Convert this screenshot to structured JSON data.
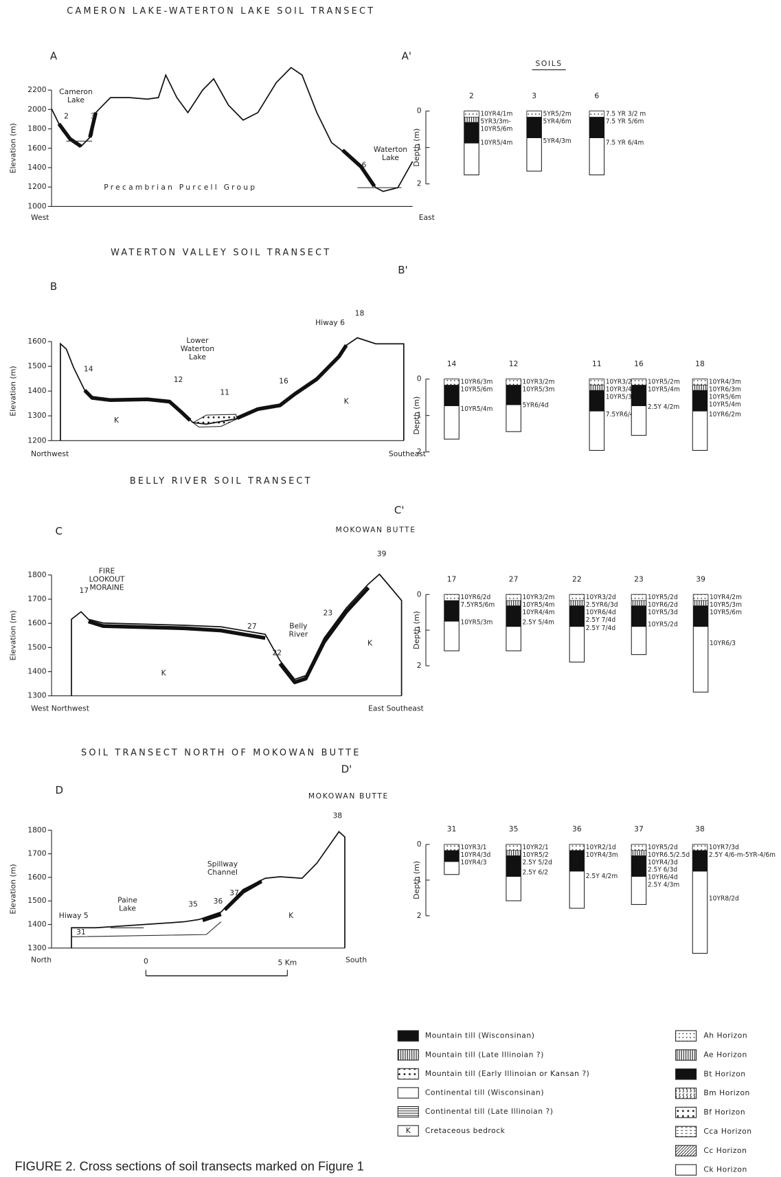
{
  "panels": [
    {
      "title": "CAMERON LAKE-WATERTON LAKE SOIL TRANSECT",
      "start": "A",
      "end": "A'",
      "y_axis_label": "Elevation (m)",
      "y_ticks": [
        "2200",
        "2000",
        "1800",
        "1600",
        "1400",
        "1200",
        "1000"
      ],
      "left_label": "West",
      "right_label": "East",
      "annotations": [
        "Cameron Lake",
        "2",
        "3",
        "Waterton Lake",
        "6",
        "Precambrian Purcell Group"
      ],
      "soils_heading": "SOILS",
      "depth_axis_label": "Depth (m)",
      "depth_ticks": [
        "0",
        "1",
        "2"
      ],
      "profiles": [
        {
          "id": "2",
          "horizons": [
            "10YR4/1m",
            "5YR3/3m-",
            "10YR5/6m",
            "10YR5/4m"
          ]
        },
        {
          "id": "3",
          "horizons": [
            "5YR5/2m",
            "5YR4/6m",
            "5YR4/3m"
          ]
        },
        {
          "id": "6",
          "horizons": [
            "7.5 YR 3/2 m",
            "7.5 YR 5/6m",
            "7.5 YR 6/4m"
          ]
        }
      ]
    },
    {
      "title": "WATERTON VALLEY SOIL TRANSECT",
      "start": "B",
      "end": "B'",
      "y_axis_label": "Elevation (m)",
      "y_ticks": [
        "1600",
        "1500",
        "1400",
        "1300",
        "1200"
      ],
      "left_label": "Northwest",
      "right_label": "Southeast",
      "annotations": [
        "14",
        "12",
        "Lower Waterton Lake",
        "11",
        "16",
        "Hiway 6",
        "18",
        "K",
        "K"
      ],
      "depth_axis_label": "Depth (m)",
      "depth_ticks": [
        "0",
        "1",
        "2"
      ],
      "profiles": [
        {
          "id": "14",
          "horizons": [
            "10YR6/3m",
            "10YR5/6m",
            "10YR5/4m"
          ]
        },
        {
          "id": "12",
          "horizons": [
            "10YR3/2m",
            "10YR5/3m",
            "5YR6/4d"
          ]
        },
        {
          "id": "11",
          "horizons": [
            "10YR3/2m",
            "10YR3/4m",
            "10YR5/3m",
            "7.5YR6/4m"
          ]
        },
        {
          "id": "16",
          "horizons": [
            "10YR5/2m",
            "10YR5/4m",
            "2.5Y 4/2m"
          ]
        },
        {
          "id": "18",
          "horizons": [
            "10YR4/3m",
            "10YR6/3m",
            "10YR5/6m",
            "10YR5/4m",
            "10YR6/2m"
          ]
        }
      ]
    },
    {
      "title": "BELLY RIVER SOIL TRANSECT",
      "start": "C",
      "end": "C'",
      "landmark": "MOKOWAN BUTTE",
      "y_axis_label": "Elevation (m)",
      "y_ticks": [
        "1800",
        "1700",
        "1600",
        "1500",
        "1400",
        "1300"
      ],
      "left_label": "West Northwest",
      "right_label": "East Southeast",
      "annotations": [
        "FIRE LOOKOUT MORAINE",
        "17",
        "27",
        "Belly River",
        "22",
        "23",
        "39",
        "K",
        "K"
      ],
      "depth_axis_label": "Depth (m)",
      "depth_ticks": [
        "0",
        "1",
        "2"
      ],
      "profiles": [
        {
          "id": "17",
          "horizons": [
            "10YR6/2d",
            "7.5YR5/6m",
            "10YR5/3m"
          ]
        },
        {
          "id": "27",
          "horizons": [
            "10YR3/2m",
            "10YR5/4m",
            "10YR4/4m",
            "2.5Y 5/4m"
          ]
        },
        {
          "id": "22",
          "horizons": [
            "10YR3/2d",
            "2.5YR6/3d",
            "10YR6/4d",
            "2.5Y 7/4d",
            "2.5Y 7/4d"
          ]
        },
        {
          "id": "23",
          "horizons": [
            "10YR5/2d",
            "10YR6/2d",
            "10YR5/3d",
            "10YR5/2d"
          ]
        },
        {
          "id": "39",
          "horizons": [
            "10YR4/2m",
            "10YR5/3m",
            "10YR5/6m",
            "10YR6/3"
          ]
        }
      ]
    },
    {
      "title": "SOIL TRANSECT NORTH OF MOKOWAN BUTTE",
      "start": "D",
      "end": "D'",
      "landmark": "MOKOWAN BUTTE",
      "y_axis_label": "Elevation (m)",
      "y_ticks": [
        "1800",
        "1700",
        "1600",
        "1500",
        "1400",
        "1300"
      ],
      "left_label": "North",
      "right_label": "South",
      "annotations": [
        "Hiway 5",
        "31",
        "Paine Lake",
        "35",
        "Spillway Channel",
        "36",
        "37",
        "38",
        "K"
      ],
      "scale_labels": [
        "0",
        "5 Km"
      ],
      "depth_axis_label": "Depth (m)",
      "depth_ticks": [
        "0",
        "1",
        "2"
      ],
      "profiles": [
        {
          "id": "31",
          "horizons": [
            "10YR3/1",
            "10YR4/3d",
            "10YR4/3"
          ]
        },
        {
          "id": "35",
          "horizons": [
            "10YR2/1",
            "10YR5/2",
            "2.5Y 5/2d",
            "2.5Y 6/2"
          ]
        },
        {
          "id": "36",
          "horizons": [
            "10YR2/1d",
            "10YR4/3m",
            "2.5Y 4/2m"
          ]
        },
        {
          "id": "37",
          "horizons": [
            "10YR5/2d",
            "10YR6.5/2.5d",
            "10YR4/3d",
            "2.5Y 6/3d",
            "10YR6/4d",
            "2.5Y 4/3m"
          ]
        },
        {
          "id": "38",
          "horizons": [
            "10YR7/3d",
            "2.5Y 4/6-m-5YR-4/6m",
            "10YR8/2d"
          ]
        }
      ]
    }
  ],
  "legend_materials": [
    {
      "label": "Mountain till (Wisconsinan)"
    },
    {
      "label": "Mountain till (Late Illinoian ?)"
    },
    {
      "label": "Mountain till (Early Illinoian or Kansan ?)"
    },
    {
      "label": "Continental till (Wisconsinan)"
    },
    {
      "label": "Continental till (Late Illinoian ?)"
    },
    {
      "symbol": "K",
      "label": "Cretaceous bedrock"
    }
  ],
  "legend_horizons": [
    {
      "label": "Ah Horizon"
    },
    {
      "label": "Ae Horizon"
    },
    {
      "label": "Bt Horizon"
    },
    {
      "label": "Bm Horizon"
    },
    {
      "label": "Bf Horizon"
    },
    {
      "label": "Cca Horizon"
    },
    {
      "label": "Cc Horizon"
    },
    {
      "label": "Ck Horizon"
    }
  ],
  "caption": "FIGURE 2.  Cross sections of soil transects marked on Figure 1"
}
